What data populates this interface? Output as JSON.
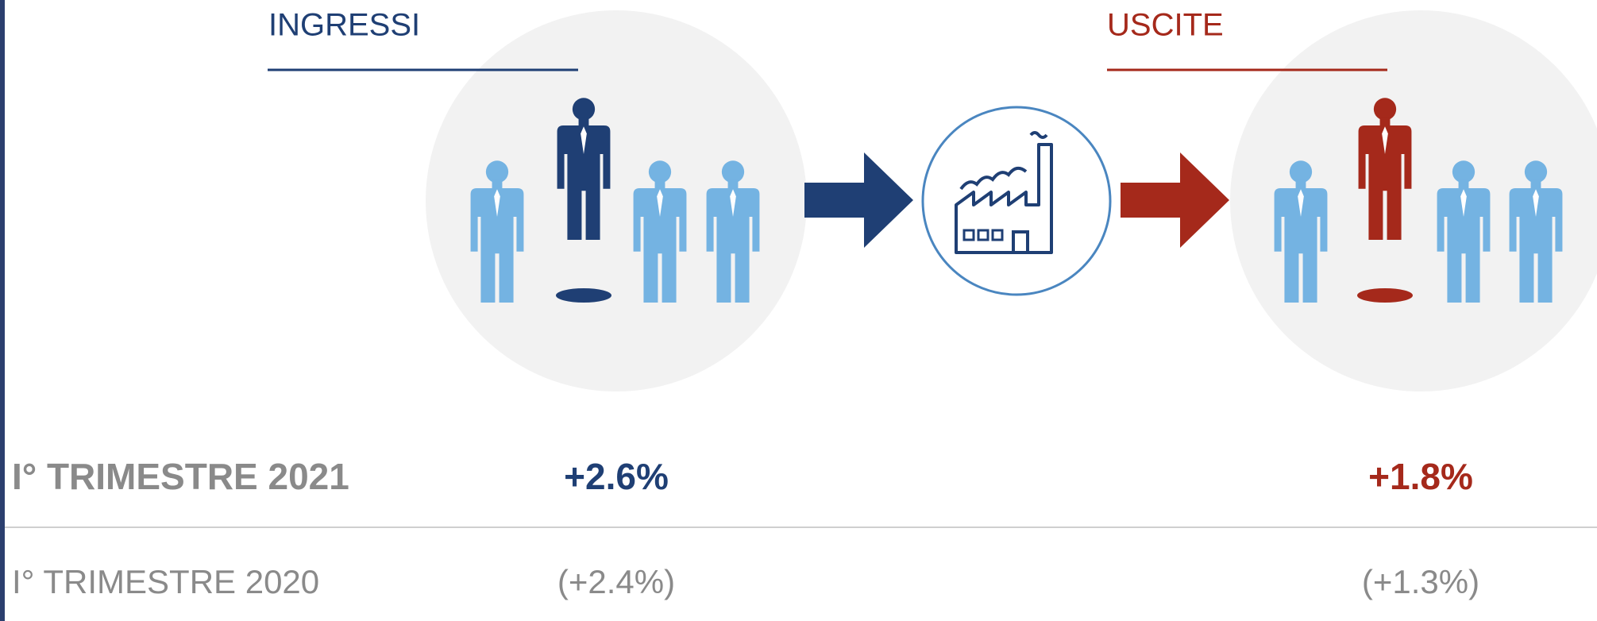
{
  "headings": {
    "left": "INGRESSI",
    "right": "USCITE"
  },
  "rows": [
    {
      "label": "I° TRIMESTRE 2021",
      "left": "+2.6%",
      "right": "+1.8%"
    },
    {
      "label": "I° TRIMESTRE 2020",
      "left": "(+2.4%)",
      "right": "(+1.3%)"
    }
  ]
}
